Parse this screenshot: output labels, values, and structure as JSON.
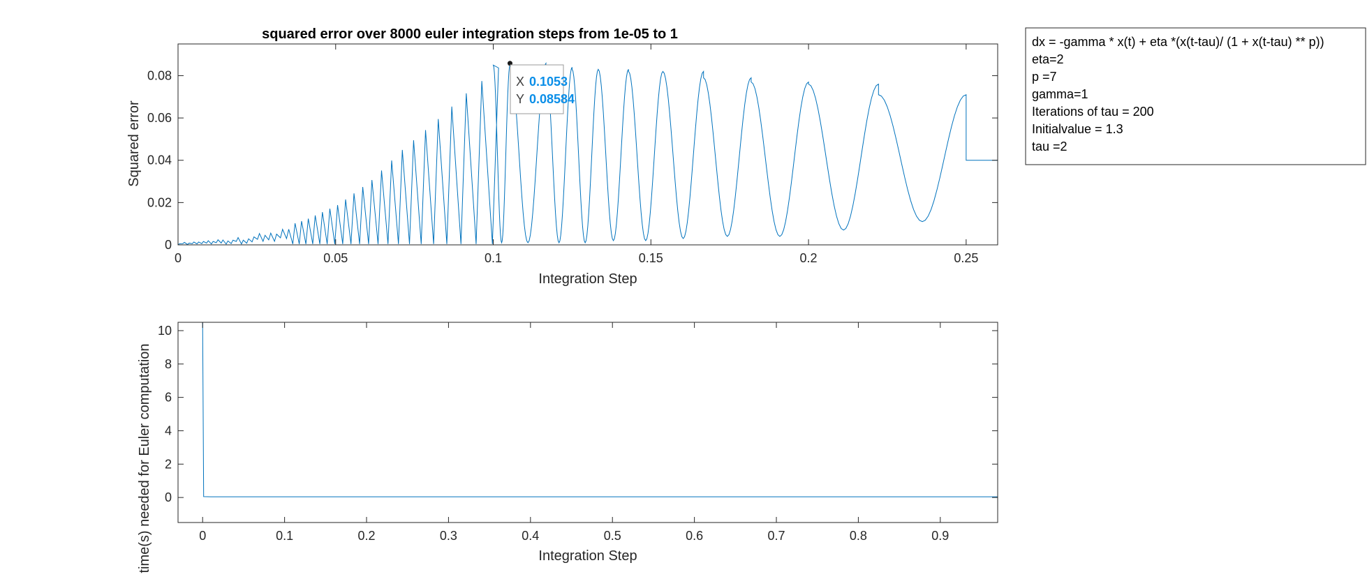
{
  "colors": {
    "line": "#0072BD",
    "axis": "#262626",
    "datatip_value": "#0a8ee8"
  },
  "annotation": {
    "lines": [
      "dx = -gamma * x(t) + eta *(x(t-tau)/ (1 + x(t-tau) ** p))",
      "eta=2",
      "p =7",
      "gamma=1",
      "Iterations of tau = 200",
      "Initialvalue = 1.3",
      "tau =2"
    ]
  },
  "chart_data": [
    {
      "type": "line",
      "title": "squared error over 8000 euler integration steps from 1e-05 to 1",
      "xlabel": "Integration Step",
      "ylabel": "Squared error",
      "xlim": [
        0,
        0.26
      ],
      "ylim": [
        0,
        0.095
      ],
      "xticks": [
        0,
        0.05,
        0.1,
        0.15,
        0.2,
        0.25
      ],
      "xtick_labels": [
        "0",
        "0.05",
        "0.1",
        "0.15",
        "0.2",
        "0.25"
      ],
      "yticks": [
        0,
        0.02,
        0.04,
        0.06,
        0.08
      ],
      "ytick_labels": [
        "0",
        "0.02",
        "0.04",
        "0.06",
        "0.08"
      ],
      "grid": false,
      "series": [
        {
          "color": "#0072BD",
          "oscillation": {
            "cycles": [
              [
                0.1,
                0.085,
                0.001
              ],
              [
                0.1053,
                0.08584,
                0.001
              ],
              [
                0.1167,
                0.084,
                0.001
              ],
              [
                0.125,
                0.083,
                0.001
              ],
              [
                0.1333,
                0.083,
                0.001
              ],
              [
                0.1429,
                0.082,
                0.002
              ],
              [
                0.1538,
                0.082,
                0.002
              ],
              [
                0.1667,
                0.079,
                0.003
              ],
              [
                0.1818,
                0.077,
                0.004
              ],
              [
                0.2,
                0.076,
                0.004
              ],
              [
                0.2222,
                0.071,
                0.007
              ],
              [
                0.25,
                0.078,
                0.011
              ]
            ],
            "envelope_x": [
              0,
              0.02,
              0.03,
              0.04,
              0.05,
              0.06,
              0.07,
              0.08,
              0.09,
              0.1
            ],
            "envelope_y": [
              0.001,
              0.004,
              0.007,
              0.012,
              0.019,
              0.03,
              0.045,
              0.058,
              0.072,
              0.084
            ],
            "tail_x": [
              0.25,
              0.26
            ],
            "tail_y": [
              0.04,
              0.04
            ]
          }
        }
      ],
      "datatip": {
        "x_label": "X",
        "x_value": "0.1053",
        "y_label": "Y",
        "y_value": "0.08584",
        "x": 0.1053,
        "y": 0.08584
      }
    },
    {
      "type": "line",
      "title": "",
      "xlabel": "Integration Step",
      "ylabel": "time(s) needed for Euler computation",
      "xlim": [
        -0.03,
        0.97
      ],
      "ylim": [
        -1.5,
        10.5
      ],
      "xticks": [
        0,
        0.1,
        0.2,
        0.3,
        0.4,
        0.5,
        0.6,
        0.7,
        0.8,
        0.9
      ],
      "xtick_labels": [
        "0",
        "0.1",
        "0.2",
        "0.3",
        "0.4",
        "0.5",
        "0.6",
        "0.7",
        "0.8",
        "0.9"
      ],
      "yticks": [
        0,
        2,
        4,
        6,
        8,
        10
      ],
      "ytick_labels": [
        "0",
        "2",
        "4",
        "6",
        "8",
        "10"
      ],
      "grid": false,
      "series": [
        {
          "color": "#0072BD",
          "x": [
            0,
            0,
            0.00125,
            0.01,
            0.1,
            0.5,
            0.97
          ],
          "y": [
            10.5,
            10.5,
            0.05,
            0.04,
            0.04,
            0.04,
            0.04
          ]
        }
      ]
    }
  ]
}
